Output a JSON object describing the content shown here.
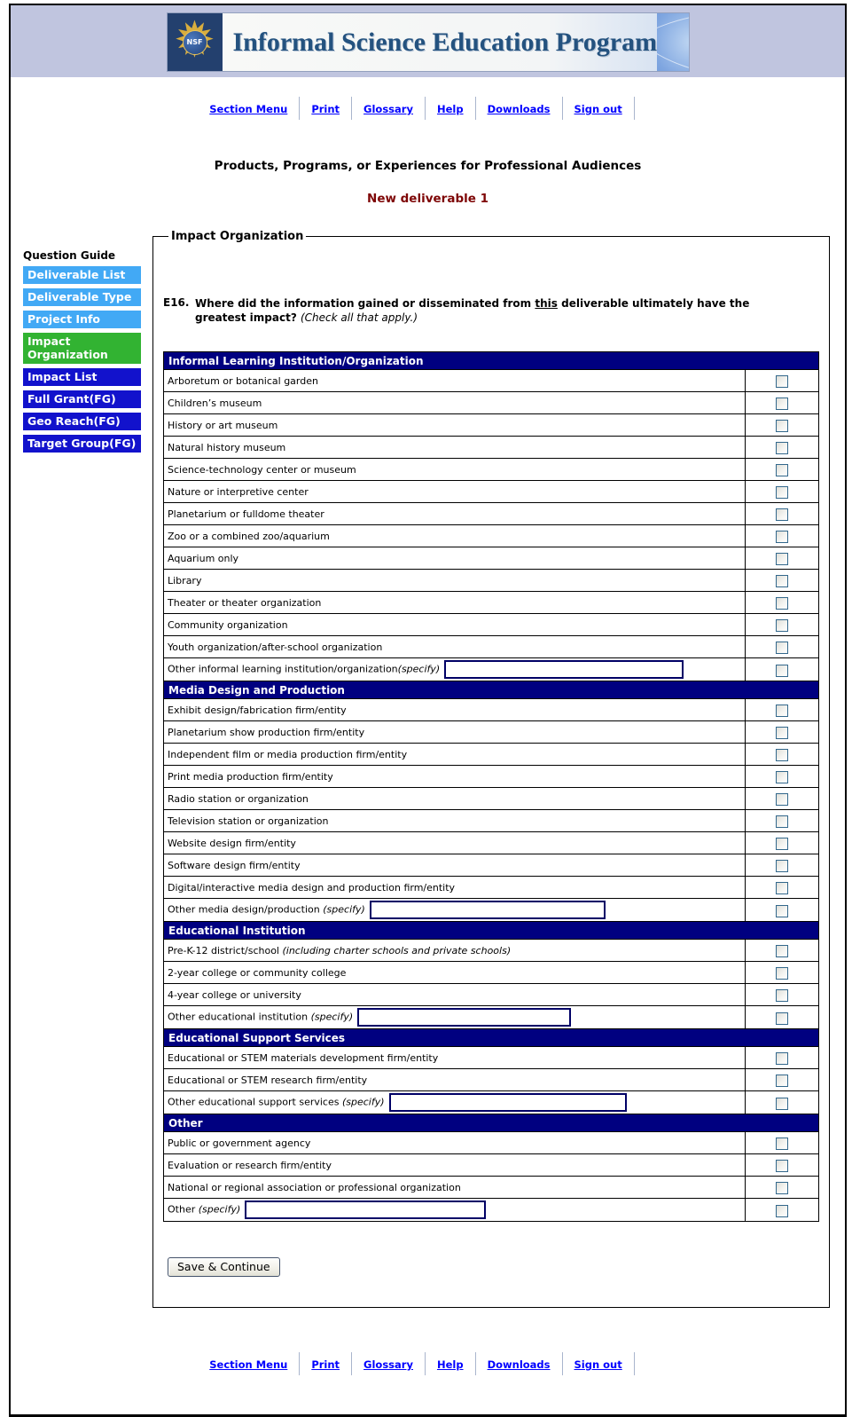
{
  "banner": {
    "logo_text": "NSF",
    "title": "Informal Science Education Program"
  },
  "nav": [
    "Section Menu",
    "Print",
    "Glossary",
    "Help",
    "Downloads",
    "Sign out"
  ],
  "page": {
    "title": "Products, Programs, or Experiences for Professional Audiences",
    "subtitle": "New deliverable 1"
  },
  "sidebar": {
    "heading": "Question Guide",
    "items": [
      {
        "label": "Deliverable List",
        "state": "visited"
      },
      {
        "label": "Deliverable Type",
        "state": "visited"
      },
      {
        "label": "Project Info",
        "state": "visited"
      },
      {
        "label": "Impact Organization",
        "state": "current"
      },
      {
        "label": "Impact List",
        "state": "upcoming"
      },
      {
        "label": "Full Grant(FG)",
        "state": "upcoming"
      },
      {
        "label": "Geo Reach(FG)",
        "state": "upcoming"
      },
      {
        "label": "Target Group(FG)",
        "state": "upcoming"
      }
    ]
  },
  "form": {
    "legend": "Impact Organization",
    "question": {
      "number": "E16.",
      "text_before": "Where did the information gained or disseminated from",
      "underlined_word": "this",
      "text_after": "deliverable ultimately have the greatest impact?",
      "note": "(Check all that apply.)"
    },
    "save_button": "Save & Continue",
    "sections": [
      {
        "header": "Informal Learning Institution/Organization",
        "rows": [
          {
            "label": "Arboretum or botanical garden"
          },
          {
            "label": "Children’s museum"
          },
          {
            "label": "History or art museum"
          },
          {
            "label": "Natural history museum"
          },
          {
            "label": "Science-technology center or museum"
          },
          {
            "label": "Nature or interpretive center"
          },
          {
            "label": "Planetarium or fulldome theater"
          },
          {
            "label": "Zoo or a combined zoo/aquarium"
          },
          {
            "label": "Aquarium only"
          },
          {
            "label": "Library"
          },
          {
            "label": "Theater or theater organization"
          },
          {
            "label": "Community organization"
          },
          {
            "label": "Youth organization/after-school organization"
          },
          {
            "label": "Other informal learning institution/organization",
            "italic": "(specify)",
            "input": true,
            "input_width": 262
          }
        ]
      },
      {
        "header": "Media Design and Production",
        "rows": [
          {
            "label": "Exhibit design/fabrication firm/entity"
          },
          {
            "label": "Planetarium show production firm/entity"
          },
          {
            "label": "Independent film or media production firm/entity"
          },
          {
            "label": "Print media production firm/entity"
          },
          {
            "label": "Radio station or organization"
          },
          {
            "label": "Television station or organization"
          },
          {
            "label": "Website design firm/entity"
          },
          {
            "label": "Software design firm/entity"
          },
          {
            "label": "Digital/interactive media design and production firm/entity"
          },
          {
            "label": "Other media design/production ",
            "italic": "(specify)",
            "input": true,
            "input_width": 258
          }
        ]
      },
      {
        "header": "Educational Institution",
        "rows": [
          {
            "label": "Pre-K-12 district/school ",
            "italic": "(including charter schools and private schools)"
          },
          {
            "label": "2-year college or community college"
          },
          {
            "label": "4-year college or university"
          },
          {
            "label": "Other educational institution ",
            "italic": "(specify)",
            "input": true,
            "input_width": 233
          }
        ]
      },
      {
        "header": "Educational Support Services",
        "rows": [
          {
            "label": "Educational or STEM materials development firm/entity"
          },
          {
            "label": "Educational or STEM research firm/entity"
          },
          {
            "label": "Other educational support services ",
            "italic": "(specify)",
            "input": true,
            "input_width": 260
          }
        ]
      },
      {
        "header": "Other",
        "rows": [
          {
            "label": "Public or government agency"
          },
          {
            "label": "Evaluation or research firm/entity"
          },
          {
            "label": "National or regional association or professional organization"
          },
          {
            "label": "Other ",
            "italic": "(specify)",
            "input": true,
            "input_width": 264
          }
        ]
      }
    ]
  },
  "colors": {
    "band": "#C0C5DF",
    "section_header_bg": "#000080",
    "sidebar_visited": "#42A9F5",
    "sidebar_current": "#32B332",
    "sidebar_upcoming": "#1212CC",
    "link": "#0000FF",
    "subtitle": "#7E0505"
  }
}
